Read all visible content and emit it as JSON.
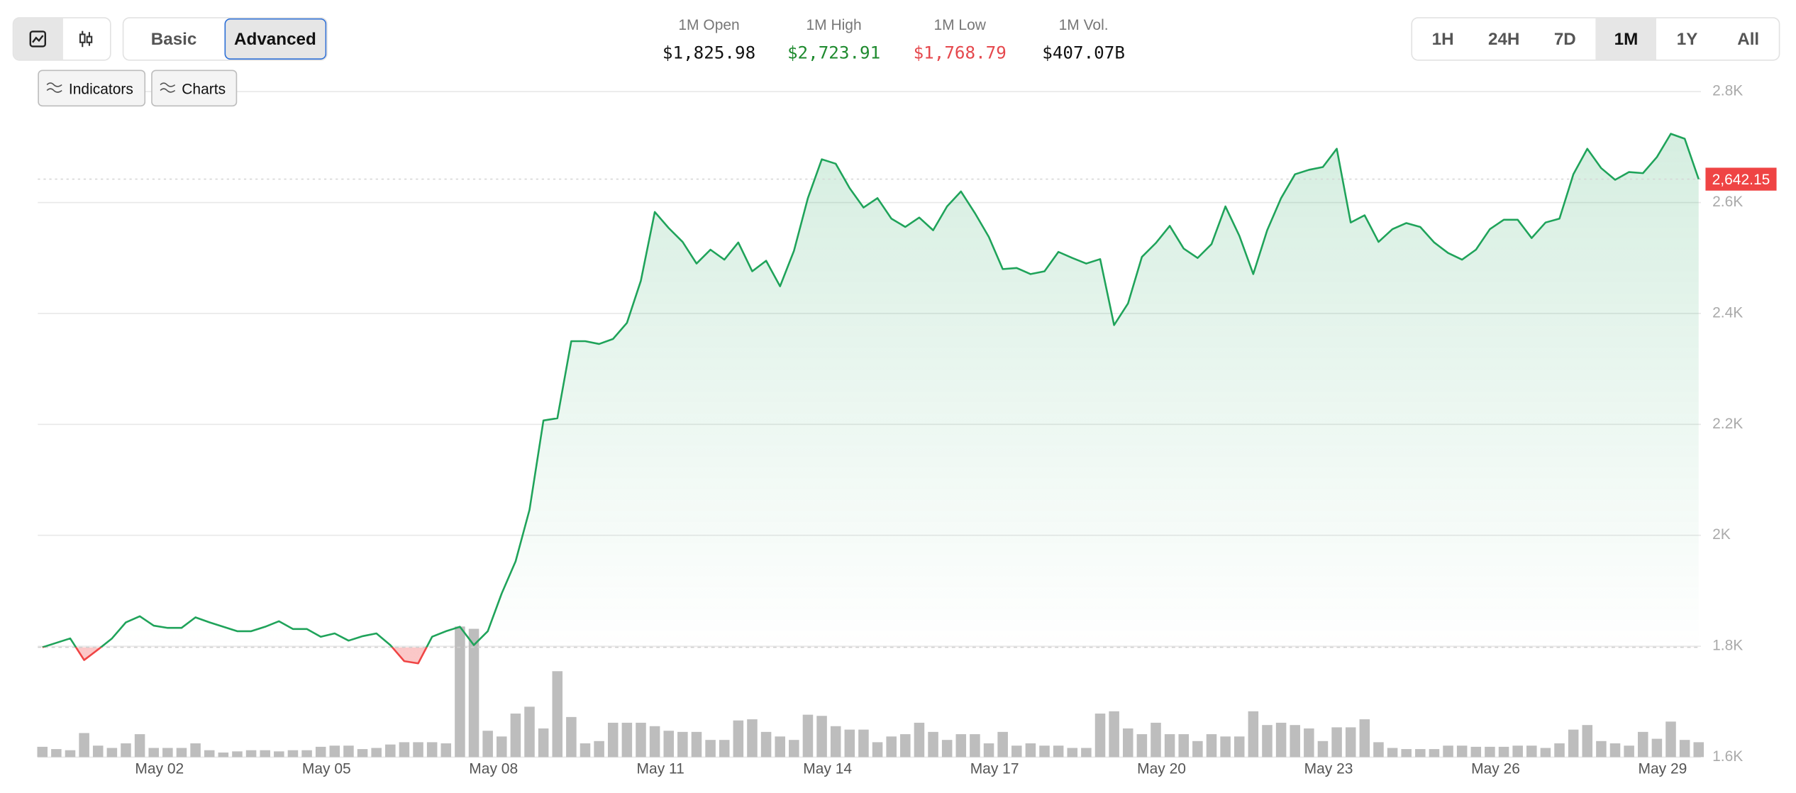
{
  "toolbar": {
    "modes": [
      "Basic",
      "Advanced"
    ],
    "active_mode_index": 1,
    "tools": [
      "Indicators",
      "Charts"
    ],
    "ranges": [
      "1H",
      "24H",
      "7D",
      "1M",
      "1Y",
      "All"
    ],
    "active_range_index": 3
  },
  "stats": [
    {
      "label": "1M Open",
      "value": "$1,825.98",
      "color": "#111111"
    },
    {
      "label": "1M High",
      "value": "$2,723.91",
      "color": "#1e8a2e"
    },
    {
      "label": "1M Low",
      "value": "$1,768.79",
      "color": "#e5484d"
    },
    {
      "label": "1M Vol.",
      "value": "$407.07B",
      "color": "#111111"
    }
  ],
  "chart_data": {
    "type": "line",
    "categories": [
      null,
      null,
      null,
      null,
      null,
      null,
      null,
      null,
      "May 02",
      null,
      null,
      null,
      null,
      null,
      null,
      null,
      null,
      null,
      null,
      null,
      "May 05",
      null,
      null,
      null,
      null,
      null,
      null,
      null,
      null,
      null,
      null,
      null,
      "May 08",
      null,
      null,
      null,
      null,
      null,
      null,
      null,
      null,
      null,
      null,
      null,
      "May 11",
      null,
      null,
      null,
      null,
      null,
      null,
      null,
      null,
      null,
      null,
      null,
      "May 14",
      null,
      null,
      null,
      null,
      null,
      null,
      null,
      null,
      null,
      null,
      null,
      "May 17",
      null,
      null,
      null,
      null,
      null,
      null,
      null,
      null,
      null,
      null,
      null,
      "May 20",
      null,
      null,
      null,
      null,
      null,
      null,
      null,
      null,
      null,
      null,
      null,
      "May 23",
      null,
      null,
      null,
      null,
      null,
      null,
      null,
      null,
      null,
      null,
      null,
      "May 26",
      null,
      null,
      null,
      null,
      null,
      null,
      null,
      null,
      null,
      null,
      null,
      "May 29",
      null,
      null,
      null
    ],
    "values": [
      1798,
      1806,
      1814,
      1775,
      1794,
      1814,
      1843,
      1854,
      1837,
      1833,
      1833,
      1852,
      1843,
      1835,
      1827,
      1827,
      1835,
      1845,
      1831,
      1831,
      1817,
      1823,
      1810,
      1818,
      1823,
      1802,
      1773,
      1769,
      1817,
      1827,
      1835,
      1802,
      1827,
      1895,
      1953,
      2046,
      2207,
      2211,
      2350,
      2350,
      2345,
      2354,
      2383,
      2459,
      2583,
      2554,
      2529,
      2490,
      2515,
      2497,
      2528,
      2476,
      2495,
      2449,
      2513,
      2608,
      2678,
      2670,
      2626,
      2591,
      2608,
      2571,
      2556,
      2573,
      2550,
      2593,
      2620,
      2581,
      2538,
      2480,
      2482,
      2471,
      2476,
      2511,
      2500,
      2490,
      2498,
      2379,
      2418,
      2502,
      2527,
      2558,
      2517,
      2500,
      2525,
      2593,
      2540,
      2471,
      2550,
      2608,
      2651,
      2659,
      2664,
      2697,
      2564,
      2577,
      2529,
      2552,
      2563,
      2556,
      2528,
      2509,
      2497,
      2515,
      2552,
      2569,
      2569,
      2536,
      2564,
      2571,
      2651,
      2697,
      2662,
      2641,
      2655,
      2653,
      2682,
      2724,
      2715,
      2642.15
    ],
    "volume": [
      9,
      7,
      6,
      21,
      10,
      8,
      12,
      20,
      8,
      8,
      8,
      12,
      6,
      4,
      5,
      6,
      6,
      5,
      6,
      6,
      9,
      10,
      10,
      7,
      8,
      11,
      13,
      13,
      13,
      12,
      114,
      112,
      23,
      18,
      38,
      44,
      25,
      75,
      35,
      12,
      14,
      30,
      30,
      30,
      27,
      23,
      22,
      22,
      15,
      15,
      32,
      33,
      22,
      18,
      15,
      37,
      36,
      27,
      24,
      24,
      13,
      18,
      20,
      30,
      22,
      15,
      20,
      20,
      12,
      22,
      10,
      12,
      10,
      10,
      8,
      8,
      38,
      40,
      25,
      20,
      30,
      20,
      20,
      14,
      20,
      18,
      18,
      40,
      28,
      30,
      28,
      25,
      14,
      26,
      26,
      33,
      13,
      8,
      7,
      7,
      7,
      10,
      10,
      9,
      9,
      9,
      10,
      10,
      8,
      12,
      24,
      28,
      14,
      12,
      10,
      22,
      16,
      31,
      15,
      13
    ],
    "color": "#1fa35a",
    "down_color": "#ef4444",
    "volume_color": "#bdbdbd",
    "ylim": [
      1600,
      2800
    ],
    "yticks": [
      {
        "value": 1600,
        "label": "1.6K"
      },
      {
        "value": 1800,
        "label": "1.8K"
      },
      {
        "value": 2000,
        "label": "2K"
      },
      {
        "value": 2200,
        "label": "2.2K"
      },
      {
        "value": 2400,
        "label": "2.4K"
      },
      {
        "value": 2600,
        "label": "2.6K"
      },
      {
        "value": 2800,
        "label": "2.8K"
      }
    ],
    "grid": true,
    "current_price": {
      "value": 2642.15,
      "label": "2,642.15"
    }
  }
}
